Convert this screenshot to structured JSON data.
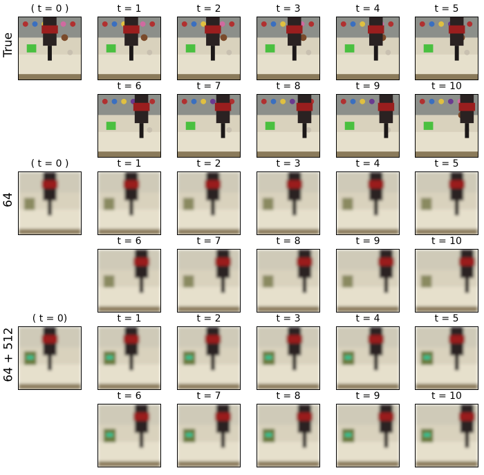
{
  "groups": [
    {
      "label": "True",
      "style": "sharp",
      "rows": [
        [
          "( t = 0 )",
          "t = 1",
          "t = 2",
          "t = 3",
          "t = 4",
          "t = 5"
        ],
        [
          null,
          "t = 6",
          "t = 7",
          "t = 8",
          "t = 9",
          "t = 10"
        ]
      ]
    },
    {
      "label": "64",
      "style": "blurry",
      "rows": [
        [
          "( t = 0 )",
          "t = 1",
          "t = 2",
          "t = 3",
          "t = 4",
          "t = 5"
        ],
        [
          null,
          "t = 6",
          "t = 7",
          "t = 8",
          "t = 9",
          "t = 10"
        ]
      ]
    },
    {
      "label": "64 + 512",
      "style": "blurry-color",
      "rows": [
        [
          "( t = 0)",
          "t = 1",
          "t = 2",
          "t = 3",
          "t = 4",
          "t = 5"
        ],
        [
          null,
          "t = 6",
          "t = 7",
          "t = 8",
          "t = 9",
          "t = 10"
        ]
      ]
    }
  ]
}
